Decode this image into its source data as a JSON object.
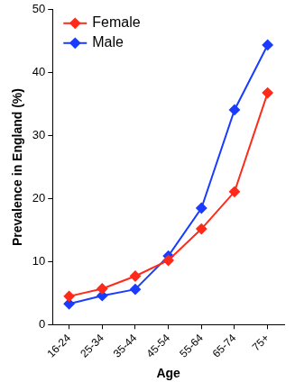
{
  "chart_data": {
    "type": "line",
    "x_label": "Age",
    "y_label": "Prevalence in England (%)",
    "categories": [
      "16-24",
      "25-34",
      "35-44",
      "45-54",
      "55-64",
      "65-74",
      "75+"
    ],
    "series": [
      {
        "name": "Female",
        "color": "#ff2a1a",
        "marker": "diamond",
        "values": [
          4.5,
          5.7,
          7.7,
          10.2,
          15.2,
          21.1,
          36.8
        ]
      },
      {
        "name": "Male",
        "color": "#1a3cff",
        "marker": "diamond",
        "values": [
          3.3,
          4.6,
          5.6,
          10.9,
          18.5,
          34.1,
          44.4
        ]
      }
    ],
    "ylim": [
      0,
      50
    ],
    "yticks": [
      0,
      10,
      20,
      30,
      40,
      50
    ],
    "grid": false,
    "legend": "upper left"
  }
}
